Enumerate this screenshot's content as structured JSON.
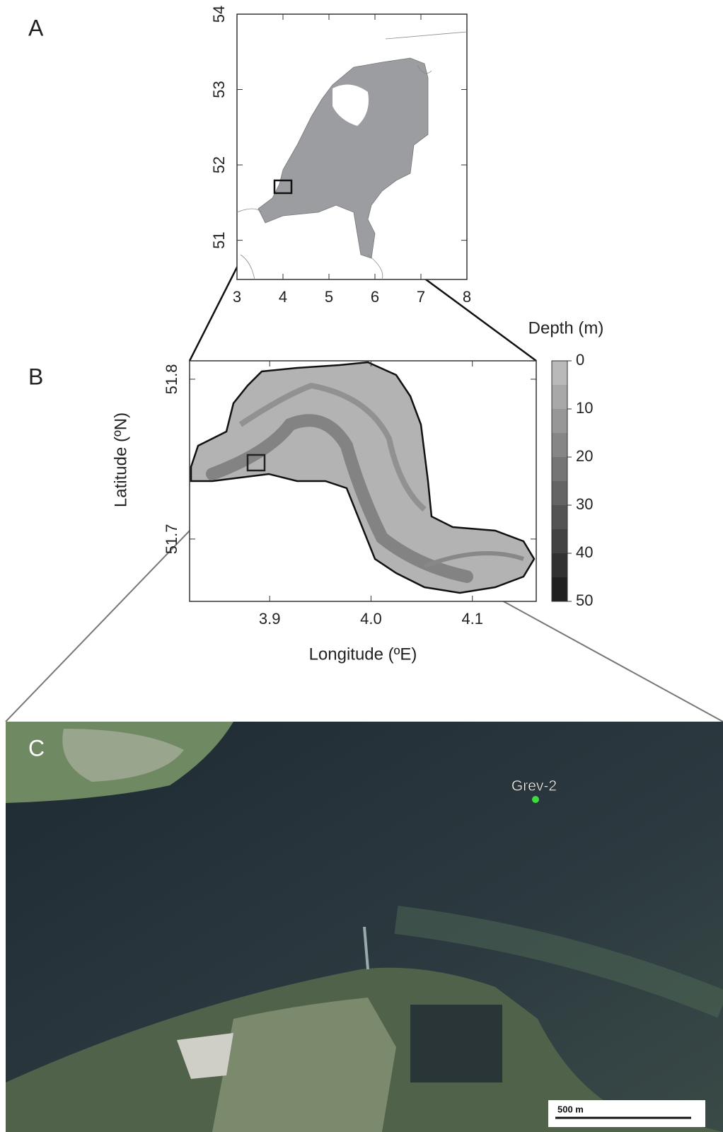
{
  "panel_a": {
    "label": "A",
    "xlim": [
      3,
      8
    ],
    "ylim": [
      50.48,
      54
    ],
    "xticks": [
      3,
      4,
      5,
      6,
      7,
      8
    ],
    "yticks": [
      51,
      52,
      53,
      54
    ]
  },
  "panel_b": {
    "label": "B",
    "xlabel": "Longitude (ºE)",
    "ylabel": "Latitude (ºN)",
    "xlim": [
      3.821,
      4.163
    ],
    "ylim": [
      51.661,
      51.8115
    ],
    "xticks": [
      3.9,
      {
        "value": 4,
        "label": "4.0"
      },
      4.1
    ],
    "yticks": [
      51.7,
      51.8
    ],
    "colorbar": {
      "title": "Depth (m)",
      "lim": [
        0,
        50
      ],
      "ticks": [
        0,
        10,
        20,
        30,
        40,
        50
      ]
    }
  },
  "panel_c": {
    "label": "C",
    "site": "Grev-2",
    "scale_bar": "500 m"
  }
}
